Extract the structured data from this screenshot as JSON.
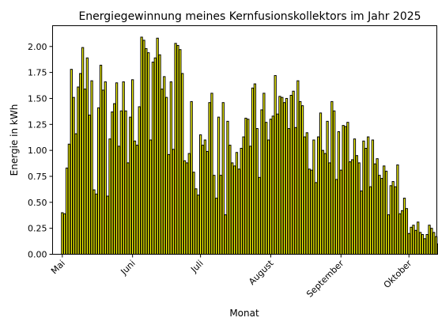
{
  "chart_data": {
    "type": "bar",
    "title": "Energiegewinnung meines Kernfusionskollektors im Jahr 2025",
    "xlabel": "Monat",
    "ylabel": "Energie in kWh",
    "ylim": [
      0,
      2.2
    ],
    "xlim_days": [
      -4.3,
      165.3
    ],
    "y_ticks": [
      0.0,
      0.25,
      0.5,
      0.75,
      1.0,
      1.25,
      1.5,
      1.75,
      2.0
    ],
    "y_tick_labels": [
      "0.00",
      "0.25",
      "0.50",
      "0.75",
      "1.00",
      "1.25",
      "1.50",
      "1.75",
      "2.00"
    ],
    "x_ticks": [
      {
        "label": "Mai",
        "day": 0
      },
      {
        "label": "Juni",
        "day": 31
      },
      {
        "label": "Juli",
        "day": 61
      },
      {
        "label": "August",
        "day": 92
      },
      {
        "label": "September",
        "day": 123
      },
      {
        "label": "Oktober",
        "day": 153
      }
    ],
    "grid": false,
    "start_date": "2025-05-01",
    "values": [
      0.4,
      0.39,
      0.83,
      1.06,
      1.78,
      1.51,
      1.16,
      1.61,
      1.74,
      1.99,
      1.59,
      1.89,
      1.34,
      1.67,
      0.62,
      0.58,
      1.41,
      1.82,
      1.58,
      1.66,
      0.56,
      1.11,
      1.37,
      1.45,
      1.65,
      1.04,
      1.38,
      1.66,
      1.38,
      0.88,
      1.32,
      1.68,
      1.09,
      1.05,
      1.42,
      2.09,
      2.06,
      1.98,
      1.94,
      1.1,
      1.85,
      1.89,
      2.08,
      1.92,
      1.59,
      1.71,
      1.51,
      0.96,
      1.66,
      1.01,
      2.03,
      2.01,
      1.97,
      1.74,
      0.9,
      0.88,
      0.97,
      1.47,
      0.79,
      0.63,
      0.57,
      1.15,
      1.05,
      1.1,
      0.99,
      1.46,
      1.55,
      0.76,
      0.54,
      1.32,
      0.76,
      1.46,
      0.38,
      1.28,
      1.05,
      0.88,
      0.85,
      0.98,
      0.82,
      1.02,
      1.13,
      1.31,
      1.3,
      1.04,
      1.6,
      1.64,
      1.21,
      0.74,
      1.39,
      1.55,
      1.27,
      1.1,
      1.3,
      1.33,
      1.72,
      1.35,
      1.52,
      1.51,
      1.46,
      1.5,
      1.21,
      1.53,
      1.57,
      1.22,
      1.67,
      1.47,
      1.43,
      1.13,
      1.17,
      0.82,
      0.81,
      1.1,
      0.69,
      1.13,
      1.36,
      1.0,
      0.97,
      1.28,
      0.88,
      1.47,
      1.38,
      0.72,
      1.18,
      0.81,
      1.24,
      1.23,
      1.27,
      0.89,
      0.91,
      1.11,
      0.95,
      0.88,
      0.61,
      1.09,
      1.02,
      1.13,
      0.65,
      1.1,
      0.87,
      0.92,
      0.76,
      0.73,
      0.85,
      0.8,
      0.38,
      0.66,
      0.7,
      0.65,
      0.86,
      0.39,
      0.42,
      0.54,
      0.44,
      0.2,
      0.26,
      0.28,
      0.23,
      0.31,
      0.21,
      0.19,
      0.15,
      0.19,
      0.28,
      0.25,
      0.21,
      0.17,
      0.1,
      0.25,
      0.15,
      0.26,
      0.28,
      0.23,
      0.15,
      0.24,
      0.12,
      0.11,
      0.13,
      0.27,
      0.16,
      0.24,
      0.23,
      0.12,
      0.17,
      0.28
    ]
  }
}
